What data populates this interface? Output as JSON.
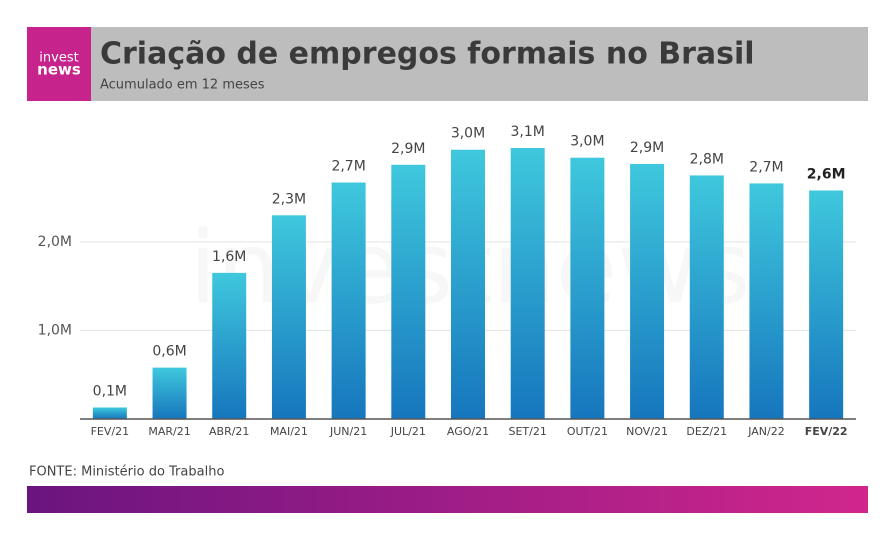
{
  "chart_data": {
    "type": "bar",
    "title": "Criação de empregos formais no Brasil",
    "subtitle": "Acumulado em 12 meses",
    "logo": [
      "invest",
      "news"
    ],
    "watermark": "investnews",
    "source": "FONTE: Ministério do Trabalho",
    "categories": [
      "FEV/21",
      "MAR/21",
      "ABR/21",
      "MAI/21",
      "JUN/21",
      "JUL/21",
      "AGO/21",
      "SET/21",
      "OUT/21",
      "NOV/21",
      "DEZ/21",
      "JAN/22",
      "FEV/22"
    ],
    "values": [
      0.13,
      0.58,
      1.65,
      2.3,
      2.67,
      2.87,
      3.04,
      3.06,
      2.95,
      2.88,
      2.75,
      2.66,
      2.58
    ],
    "value_labels": [
      "0,1M",
      "0,6M",
      "1,6M",
      "2,3M",
      "2,7M",
      "2,9M",
      "3,0M",
      "3,1M",
      "3,0M",
      "2,9M",
      "2,8M",
      "2,7M",
      "2,6M"
    ],
    "color_top": "#3fc8dd",
    "color_bottom": "#1676bd",
    "ylim": [
      0,
      3.5
    ],
    "yticks": [
      {
        "value": 1,
        "label": "1,0M"
      },
      {
        "value": 2,
        "label": "2,0M"
      }
    ],
    "grid": true
  }
}
